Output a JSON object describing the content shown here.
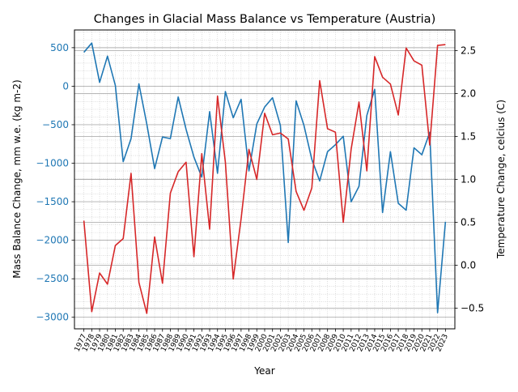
{
  "chart_data": {
    "type": "line",
    "title": "Changes in Glacial Mass Balance vs Temperature (Austria)",
    "xlabel": "Year",
    "ylabel_left": "Mass Balance Change, mm w.e. (kg m-2)",
    "ylabel_right": "Temperature Change, celcius (C)",
    "x": [
      "1977",
      "1978",
      "1979",
      "1980",
      "1981",
      "1982",
      "1983",
      "1984",
      "1985",
      "1986",
      "1987",
      "1988",
      "1989",
      "1990",
      "1991",
      "1992",
      "1993",
      "1994",
      "1995",
      "1996",
      "1997",
      "1998",
      "1999",
      "2000",
      "2001",
      "2002",
      "2003",
      "2004",
      "2005",
      "2006",
      "2007",
      "2008",
      "2009",
      "2010",
      "2011",
      "2012",
      "2013",
      "2014",
      "2015",
      "2016",
      "2017",
      "2018",
      "2019",
      "2020",
      "2021",
      "2022",
      "2023"
    ],
    "xlim": [
      1975.8,
      2024.2
    ],
    "ylim_left": [
      -3150,
      730
    ],
    "ylim_right": [
      -0.74,
      2.74
    ],
    "yticks_left": [
      500,
      0,
      -500,
      -1000,
      -1500,
      -2000,
      -2500,
      -3000
    ],
    "yticks_right": [
      2.5,
      2.0,
      1.5,
      1.0,
      0.5,
      0.0,
      -0.5
    ],
    "grid": "minor dotted, horizontal major lines",
    "series": [
      {
        "axis": "left",
        "color": "#1f77b4",
        "values": [
          440,
          560,
          50,
          390,
          10,
          -980,
          -680,
          30,
          -490,
          -1070,
          -660,
          -680,
          -140,
          -560,
          -920,
          -1180,
          -330,
          -1130,
          -70,
          -410,
          -170,
          -1100,
          -490,
          -270,
          -150,
          -510,
          -2030,
          -190,
          -510,
          -950,
          -1230,
          -850,
          -760,
          -650,
          -1500,
          -1300,
          -380,
          -40,
          -1640,
          -850,
          -1520,
          -1610,
          -800,
          -890,
          -600,
          -2940,
          -1760
        ]
      },
      {
        "axis": "right",
        "color": "#d62728",
        "values": [
          0.52,
          -0.54,
          -0.09,
          -0.22,
          0.23,
          0.31,
          1.07,
          -0.2,
          -0.56,
          0.33,
          -0.21,
          0.84,
          1.09,
          1.2,
          0.1,
          1.3,
          0.42,
          1.97,
          1.2,
          -0.16,
          0.54,
          1.35,
          1.0,
          1.77,
          1.52,
          1.54,
          1.47,
          0.86,
          0.64,
          0.9,
          2.15,
          1.59,
          1.55,
          0.5,
          1.35,
          1.9,
          1.1,
          2.43,
          2.19,
          2.11,
          1.75,
          2.53,
          2.38,
          2.33,
          1.4,
          2.56,
          2.57
        ]
      }
    ]
  }
}
